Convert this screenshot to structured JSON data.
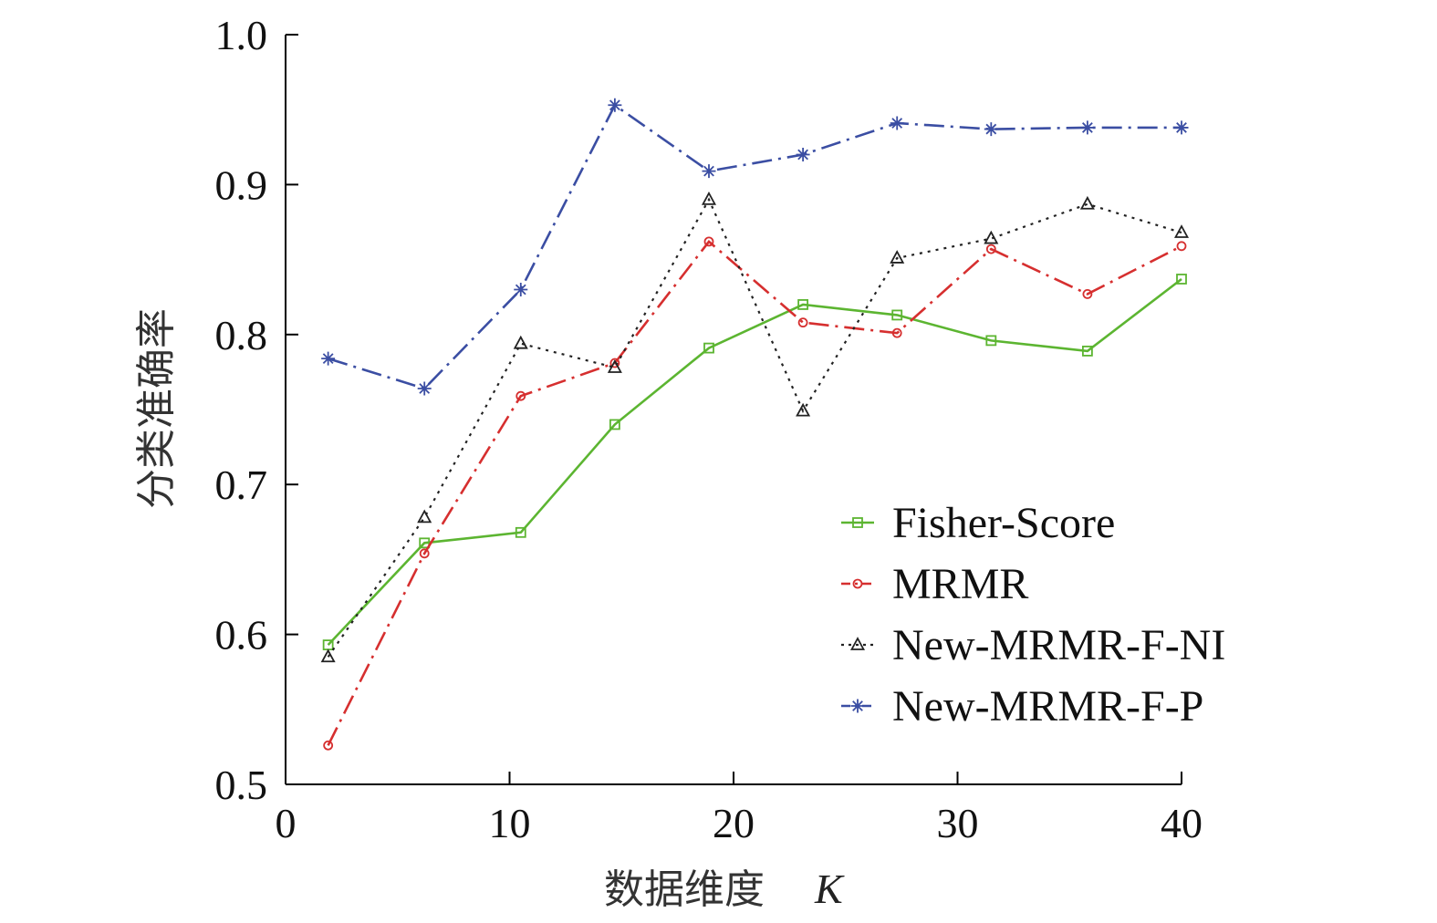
{
  "chart_data": {
    "type": "line",
    "xlabel": "数据维度",
    "xlabel_var": "K",
    "ylabel": "分类准确率",
    "xlim": [
      0,
      40
    ],
    "ylim": [
      0.5,
      1.0
    ],
    "xticks": [
      0,
      10,
      20,
      30,
      40
    ],
    "yticks": [
      0.5,
      0.6,
      0.7,
      0.8,
      0.9,
      1.0
    ],
    "xtick_labels": [
      "0",
      "10",
      "20",
      "30",
      "40"
    ],
    "ytick_labels": [
      "0.5",
      "0.6",
      "0.7",
      "0.8",
      "0.9",
      "1.0"
    ],
    "legend_position": "bottom-right",
    "x": [
      1.9,
      6.2,
      10.5,
      14.7,
      18.9,
      23.1,
      27.3,
      31.5,
      35.8,
      40
    ],
    "series": [
      {
        "name": "Fisher-Score",
        "color": "#5cb531",
        "dash": "solid",
        "marker": "square",
        "values": [
          0.593,
          0.661,
          0.668,
          0.74,
          0.791,
          0.82,
          0.813,
          0.796,
          0.789,
          0.837
        ]
      },
      {
        "name": "MRMR",
        "color": "#d62f2f",
        "dash": "dashdot",
        "marker": "circle",
        "values": [
          0.526,
          0.654,
          0.759,
          0.781,
          0.862,
          0.808,
          0.801,
          0.857,
          0.827,
          0.859
        ]
      },
      {
        "name": "New-MRMR-F-NI",
        "color": "#222222",
        "dash": "dotted",
        "marker": "triangle",
        "values": [
          0.585,
          0.678,
          0.794,
          0.778,
          0.89,
          0.749,
          0.851,
          0.864,
          0.887,
          0.868
        ]
      },
      {
        "name": "New-MRMR-F-P",
        "color": "#3b4ea3",
        "dash": "dashdot",
        "marker": "asterisk",
        "values": [
          0.784,
          0.764,
          0.83,
          0.953,
          0.909,
          0.92,
          0.941,
          0.937,
          0.938,
          0.938
        ]
      }
    ]
  }
}
